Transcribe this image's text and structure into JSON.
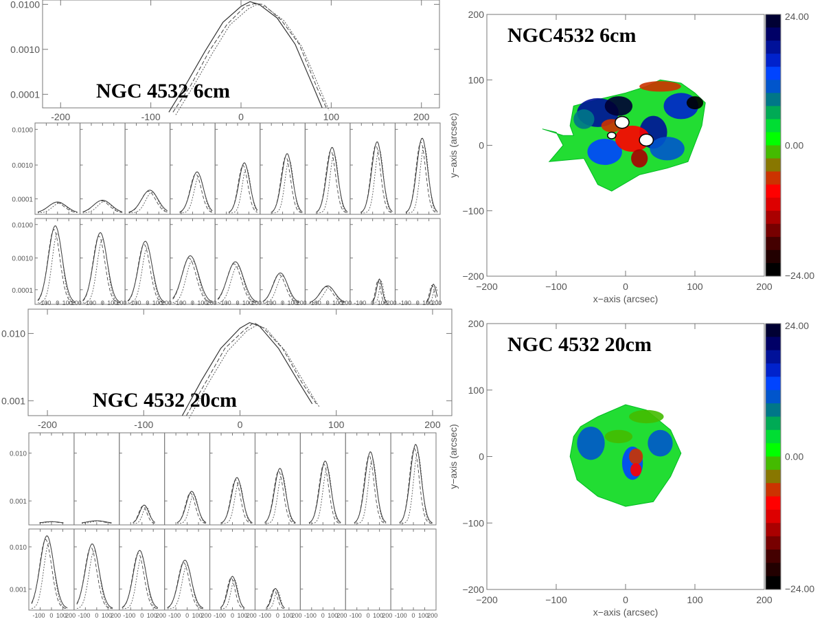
{
  "profiles_6cm": {
    "title": "NGC 4532 6cm",
    "main": {
      "x_ticks": [
        "-200",
        "-100",
        "0",
        "100",
        "200"
      ],
      "y_ticks": [
        "0.0100",
        "0.0010",
        "0.0001"
      ]
    },
    "grid_y_ticks": [
      "0.0100",
      "0.0010",
      "0.0001"
    ],
    "x_tick_strip": [
      "-100",
      "0",
      "100",
      "200",
      "-100",
      "0",
      "100",
      "200",
      "-100",
      "0",
      "100",
      "200",
      "-100",
      "0",
      "100",
      "200",
      "-100",
      "0",
      "100",
      "200",
      "-100",
      "0",
      "100",
      "200",
      "-100",
      "0",
      "100",
      "200",
      "-100",
      "0",
      "100",
      "200",
      "-100",
      "0",
      "100",
      "200"
    ]
  },
  "profiles_20cm": {
    "title": "NGC 4532 20cm",
    "main": {
      "x_ticks": [
        "-200",
        "-100",
        "0",
        "100",
        "200"
      ],
      "y_ticks": [
        "0.010",
        "0.001"
      ]
    },
    "grid_y_ticks": [
      "0.010",
      "0.001"
    ],
    "x_tick_strip": [
      "-100",
      "0",
      "100",
      "200",
      "-100",
      "0",
      "100",
      "200",
      "-100",
      "0",
      "100",
      "200",
      "-100",
      "0",
      "100",
      "200",
      "-100",
      "0",
      "100",
      "200",
      "-100",
      "0",
      "100",
      "200",
      "-100",
      "0",
      "100",
      "200",
      "-100",
      "0",
      "100",
      "200",
      "-100",
      "0",
      "100",
      "200"
    ]
  },
  "maps": [
    {
      "title": "NGC4532 6cm",
      "xlabel": "x−axis (arcsec)",
      "ylabel": "y−axis (arcsec)",
      "x_ticks": [
        "−200",
        "−100",
        "0",
        "100",
        "200"
      ],
      "y_ticks": [
        "200",
        "100",
        "0",
        "−100",
        "−200"
      ],
      "colorbar_labels": [
        "24.00",
        "0.00",
        "−24.00"
      ]
    },
    {
      "title": "NGC 4532 20cm",
      "xlabel": "x−axis (arcsec)",
      "ylabel": "y−axis (arcsec)",
      "x_ticks": [
        "−200",
        "−100",
        "0",
        "100",
        "200"
      ],
      "y_ticks": [
        "200",
        "100",
        "0",
        "−100",
        "−200"
      ],
      "colorbar_labels": [
        "24.00",
        "0.00",
        "−24.00"
      ]
    }
  ],
  "colorbar_colors": [
    "#000033",
    "#000066",
    "#001199",
    "#0022cc",
    "#0044ff",
    "#0055cc",
    "#007788",
    "#00aa55",
    "#00dd33",
    "#00ff00",
    "#44bb00",
    "#887700",
    "#cc3300",
    "#ff0000",
    "#dd0000",
    "#aa0000",
    "#770000",
    "#440000",
    "#220000",
    "#000000"
  ],
  "chart_data": [
    {
      "type": "line",
      "title": "NGC 4532 6cm",
      "xlim": [
        -220,
        220
      ],
      "ylim_log": [
        5e-05,
        0.0125
      ],
      "y_scale": "log",
      "series": [
        {
          "x": [
            -80,
            -60,
            -40,
            -20,
            0,
            10,
            20,
            40,
            60,
            80,
            90
          ],
          "y": [
            4e-05,
            0.00018,
            0.0009,
            0.004,
            0.009,
            0.0115,
            0.01,
            0.005,
            0.0013,
            0.00015,
            5e-05
          ]
        }
      ]
    },
    {
      "type": "line",
      "title": "NGC 4532 20cm",
      "xlim": [
        -220,
        220
      ],
      "ylim_log": [
        0.0006,
        0.023
      ],
      "y_scale": "log",
      "series": [
        {
          "x": [
            -60,
            -40,
            -20,
            0,
            10,
            20,
            40,
            60,
            75
          ],
          "y": [
            0.0006,
            0.002,
            0.006,
            0.012,
            0.0145,
            0.013,
            0.006,
            0.002,
            0.0009
          ]
        }
      ]
    },
    {
      "type": "heatmap",
      "title": "NGC4532 6cm",
      "xlabel": "x−axis (arcsec)",
      "ylabel": "y−axis (arcsec)",
      "xlim": [
        -200,
        200
      ],
      "ylim": [
        -200,
        200
      ],
      "colorbar_range": [
        -24,
        24
      ]
    },
    {
      "type": "heatmap",
      "title": "NGC 4532 20cm",
      "xlabel": "x−axis (arcsec)",
      "ylabel": "y−axis (arcsec)",
      "xlim": [
        -200,
        200
      ],
      "ylim": [
        -200,
        200
      ],
      "colorbar_range": [
        -24,
        24
      ]
    }
  ]
}
